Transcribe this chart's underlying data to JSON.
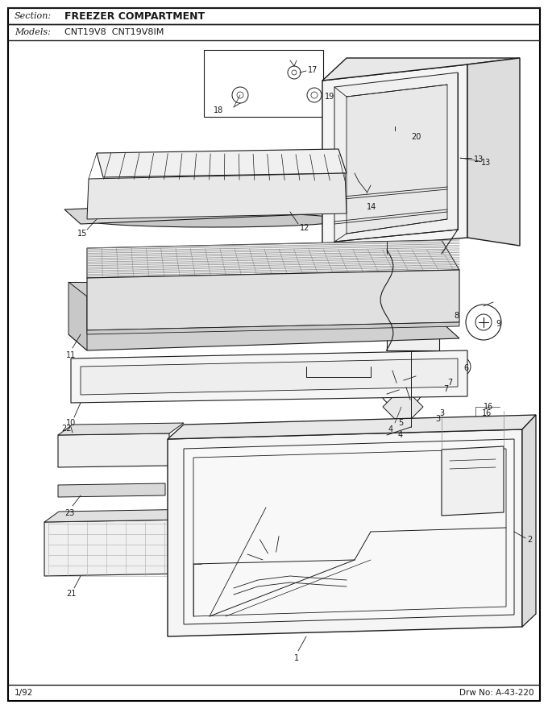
{
  "section_label": "Section:",
  "section_value": "FREEZER COMPARTMENT",
  "models_label": "Models:",
  "models_value": "CNT19V8  CNT19V8IM",
  "footer_left": "1/92",
  "footer_right": "Drw No: A-43-220",
  "bg_color": "#ffffff",
  "lc": "#1a1a1a",
  "lw": 0.8,
  "fig_w": 6.8,
  "fig_h": 8.9,
  "dpi": 100
}
